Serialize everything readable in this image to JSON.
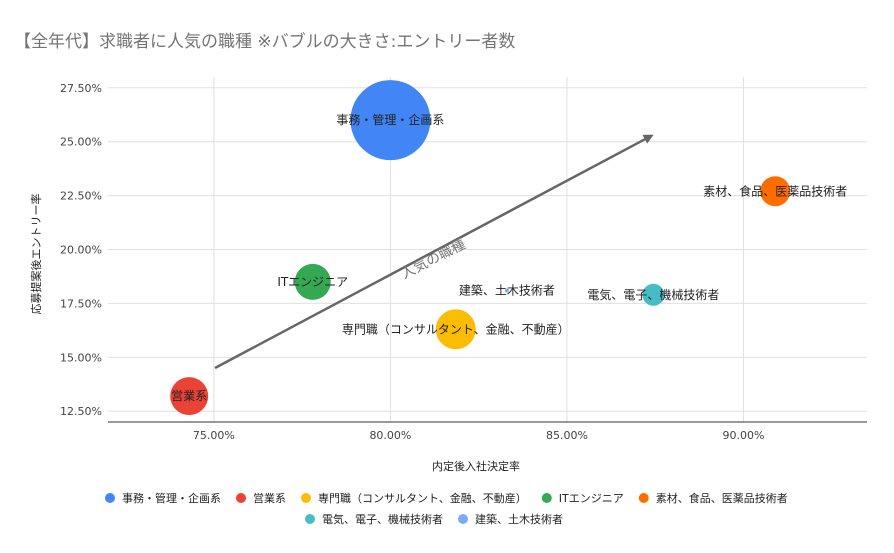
{
  "chart_data": {
    "type": "scatter",
    "title": "【全年代】求職者に人気の職種 ※バブルの大きさ:エントリー者数",
    "xlabel": "内定後入社決定率",
    "ylabel": "応募提案後エントリー率",
    "xlim": [
      0.72,
      0.935
    ],
    "ylim": [
      0.12,
      0.28
    ],
    "x_ticks": [
      "75.00%",
      "80.00%",
      "85.00%",
      "90.00%"
    ],
    "y_ticks": [
      "12.50%",
      "15.00%",
      "17.50%",
      "20.00%",
      "22.50%",
      "25.00%",
      "27.50%"
    ],
    "grid": true,
    "legend_position": "bottom",
    "annotation": "人気の職種",
    "series": [
      {
        "name": "事務・管理・企画系",
        "label": "事務・管理・企画系",
        "color": "#4285f4",
        "x": 0.8,
        "y": 0.26,
        "size": 40
      },
      {
        "name": "営業系",
        "label": "営業系",
        "color": "#ea4335",
        "x": 0.743,
        "y": 0.132,
        "size": 19
      },
      {
        "name": "専門職（コンサルタント、金融、不動産）",
        "label": "専門職（コンサルタント、金融、不動産）",
        "color": "#fbbc04",
        "x": 0.8185,
        "y": 0.163,
        "size": 20
      },
      {
        "name": "ITエンジニア",
        "label": "ITエンジニア",
        "color": "#34a853",
        "x": 0.778,
        "y": 0.185,
        "size": 18
      },
      {
        "name": "素材、食品、医薬品技術者",
        "label": "素材、食品、医薬品技術者",
        "color": "#ff6d01",
        "x": 0.909,
        "y": 0.227,
        "size": 15
      },
      {
        "name": "電気、電子、機械技術者",
        "label": "電気、電子、機械技術者",
        "color": "#46bdc6",
        "x": 0.8745,
        "y": 0.179,
        "size": 11
      },
      {
        "name": "建築、土木技術者",
        "label": "建築、土木技術者",
        "color": "#7baaf7",
        "x": 0.833,
        "y": 0.181,
        "size": 2
      }
    ]
  }
}
